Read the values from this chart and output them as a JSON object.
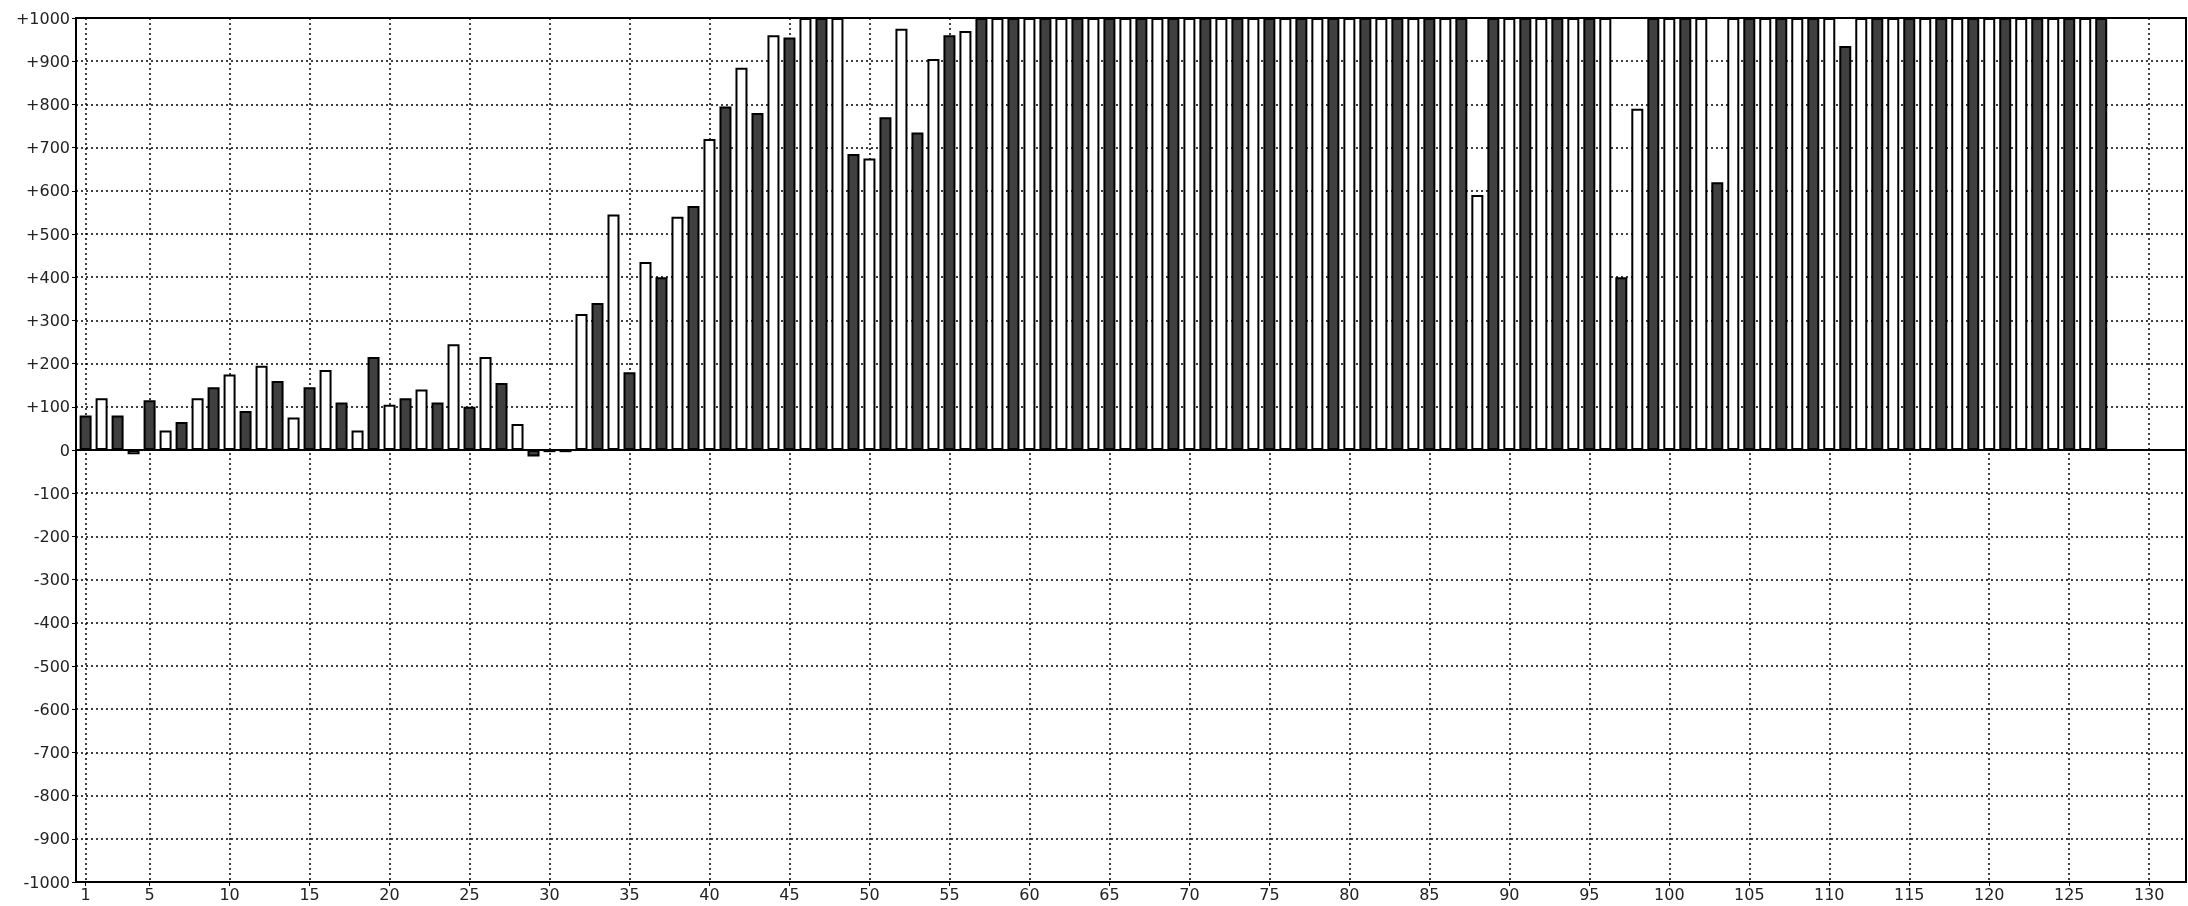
{
  "chart_data": {
    "type": "bar",
    "x": [
      1,
      2,
      3,
      4,
      5,
      6,
      7,
      8,
      9,
      10,
      11,
      12,
      13,
      14,
      15,
      16,
      17,
      18,
      19,
      20,
      21,
      22,
      23,
      24,
      25,
      26,
      27,
      28,
      29,
      30,
      31,
      32,
      33,
      34,
      35,
      36,
      37,
      38,
      39,
      40,
      41,
      42,
      43,
      44,
      45,
      46,
      47,
      48,
      49,
      50,
      51,
      52,
      53,
      54,
      55,
      56,
      57,
      58,
      59,
      60,
      61,
      62,
      63,
      64,
      65,
      66,
      67,
      68,
      69,
      70,
      71,
      72,
      73,
      74,
      75,
      76,
      77,
      78,
      79,
      80,
      81,
      82,
      83,
      84,
      85,
      86,
      87,
      88,
      89,
      90,
      91,
      92,
      93,
      94,
      95,
      96,
      97,
      98,
      99,
      100,
      101,
      102,
      103,
      104,
      105,
      106,
      107,
      108,
      109,
      110,
      111,
      112,
      113,
      114,
      115,
      116,
      117,
      118,
      119,
      120,
      121,
      122,
      123,
      124,
      125,
      126,
      127
    ],
    "values": [
      80,
      120,
      80,
      -10,
      115,
      45,
      65,
      120,
      145,
      175,
      90,
      195,
      160,
      75,
      145,
      185,
      110,
      45,
      215,
      105,
      120,
      140,
      110,
      245,
      100,
      215,
      155,
      60,
      -15,
      -5,
      -5,
      315,
      340,
      545,
      180,
      435,
      400,
      540,
      565,
      720,
      795,
      885,
      780,
      960,
      955,
      1000,
      1000,
      1000,
      685,
      675,
      770,
      975,
      735,
      905,
      960,
      970,
      1000,
      1000,
      1000,
      1000,
      1000,
      1000,
      1000,
      1000,
      1000,
      1000,
      1000,
      1000,
      1000,
      1000,
      1000,
      1000,
      1000,
      1000,
      1000,
      1000,
      1000,
      1000,
      1000,
      1000,
      1000,
      1000,
      1000,
      1000,
      1000,
      1000,
      1000,
      590,
      1000,
      1000,
      1000,
      1000,
      1000,
      1000,
      1000,
      1000,
      400,
      790,
      1000,
      1000,
      1000,
      1000,
      620,
      1000,
      1000,
      1000,
      1000,
      1000,
      1000,
      1000,
      935,
      1000,
      1000,
      1000,
      1000,
      1000,
      1000,
      1000,
      1000,
      1000,
      1000,
      1000,
      1000,
      1000,
      1000,
      1000,
      1000
    ],
    "colors": [
      "#404040",
      "#ffffff",
      "#404040",
      "#ffffff",
      "#404040",
      "#ffffff",
      "#404040",
      "#ffffff",
      "#404040",
      "#ffffff",
      "#404040",
      "#ffffff",
      "#404040",
      "#ffffff",
      "#404040",
      "#ffffff",
      "#404040",
      "#ffffff",
      "#404040",
      "#ffffff",
      "#404040",
      "#ffffff",
      "#404040",
      "#ffffff",
      "#404040",
      "#ffffff",
      "#404040",
      "#ffffff",
      "#404040",
      "#ffffff",
      "#404040",
      "#ffffff",
      "#404040",
      "#ffffff",
      "#404040",
      "#ffffff",
      "#404040",
      "#ffffff",
      "#404040",
      "#ffffff",
      "#404040",
      "#ffffff",
      "#404040",
      "#ffffff",
      "#404040",
      "#ffffff",
      "#404040",
      "#ffffff",
      "#404040",
      "#ffffff",
      "#404040",
      "#ffffff",
      "#404040",
      "#ffffff",
      "#404040",
      "#ffffff",
      "#404040",
      "#ffffff",
      "#404040",
      "#ffffff",
      "#404040",
      "#ffffff",
      "#404040",
      "#ffffff",
      "#404040",
      "#ffffff",
      "#404040",
      "#ffffff",
      "#404040",
      "#ffffff",
      "#404040",
      "#ffffff",
      "#404040",
      "#ffffff",
      "#404040",
      "#ffffff",
      "#404040",
      "#ffffff",
      "#404040",
      "#ffffff",
      "#404040",
      "#ffffff",
      "#404040",
      "#ffffff",
      "#404040",
      "#ffffff",
      "#404040",
      "#ffffff",
      "#404040",
      "#ffffff",
      "#404040",
      "#ffffff",
      "#404040",
      "#ffffff",
      "#404040",
      "#ffffff",
      "#404040",
      "#ffffff",
      "#404040",
      "#ffffff",
      "#404040",
      "#ffffff",
      "#404040",
      "#ffffff",
      "#404040",
      "#ffffff",
      "#404040",
      "#ffffff",
      "#404040",
      "#ffffff",
      "#404040",
      "#ffffff",
      "#404040",
      "#ffffff",
      "#404040",
      "#ffffff",
      "#404040",
      "#ffffff",
      "#404040",
      "#ffffff",
      "#404040",
      "#ffffff",
      "#404040",
      "#ffffff",
      "#404040",
      "#ffffff",
      "#404040"
    ],
    "xlim": [
      0.4,
      132.3
    ],
    "xticks": [
      1,
      5,
      10,
      15,
      20,
      25,
      30,
      35,
      40,
      45,
      50,
      55,
      60,
      65,
      70,
      75,
      80,
      85,
      90,
      95,
      100,
      105,
      110,
      115,
      120,
      125,
      130
    ],
    "ylim": [
      -1000,
      1000
    ],
    "yticks": [
      {
        "value": -1000,
        "label": "-1000"
      },
      {
        "value": -900,
        "label": "-900"
      },
      {
        "value": -800,
        "label": "-800"
      },
      {
        "value": -700,
        "label": "-700"
      },
      {
        "value": -600,
        "label": "-600"
      },
      {
        "value": -500,
        "label": "-500"
      },
      {
        "value": -400,
        "label": "-400"
      },
      {
        "value": -300,
        "label": "-300"
      },
      {
        "value": -200,
        "label": "-200"
      },
      {
        "value": -100,
        "label": "-100"
      },
      {
        "value": 0,
        "label": "0"
      },
      {
        "value": 100,
        "label": "+100"
      },
      {
        "value": 200,
        "label": "+200"
      },
      {
        "value": 300,
        "label": "+300"
      },
      {
        "value": 400,
        "label": "+400"
      },
      {
        "value": 500,
        "label": "+500"
      },
      {
        "value": 600,
        "label": "+600"
      },
      {
        "value": 700,
        "label": "+700"
      },
      {
        "value": 800,
        "label": "+800"
      },
      {
        "value": 900,
        "label": "+900"
      },
      {
        "value": 1000,
        "label": "+1000"
      }
    ],
    "grid": true
  }
}
